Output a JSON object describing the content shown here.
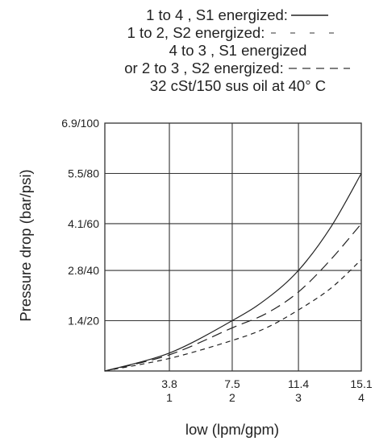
{
  "legend": [
    {
      "text": "1 to 4 , S1 energized:",
      "style": "solid"
    },
    {
      "text": "1 to 2, S2 energized:",
      "style": "sparse-dash"
    },
    {
      "text": "4 to 3 , S1 energized",
      "style": "none"
    },
    {
      "text": "or 2 to 3 , S2 energized:",
      "style": "dash"
    },
    {
      "text": "32 cSt/150 sus oil at 40°  C",
      "style": "none"
    }
  ],
  "chart_data": {
    "type": "line",
    "xlabel": "low (lpm/gpm)",
    "ylabel": "Pressure drop (bar/psi)",
    "x_ticks": [
      {
        "value": 3.8,
        "top": "3.8",
        "bottom": "1"
      },
      {
        "value": 7.5,
        "top": "7.5",
        "bottom": "2"
      },
      {
        "value": 11.4,
        "top": "11.4",
        "bottom": "3"
      },
      {
        "value": 15.1,
        "top": "15.1",
        "bottom": "4"
      }
    ],
    "y_ticks": [
      {
        "value": 1.4,
        "label": "1.4/20"
      },
      {
        "value": 2.8,
        "label": "2.8/40"
      },
      {
        "value": 4.1,
        "label": "4.1/60"
      },
      {
        "value": 5.5,
        "label": "5.5/80"
      },
      {
        "value": 6.9,
        "label": "6.9/100"
      }
    ],
    "xlim": [
      0,
      15.1
    ],
    "ylim": [
      0,
      6.9
    ],
    "grid": true,
    "series": [
      {
        "style": "solid",
        "x": [
          0,
          3.8,
          7.5,
          9.5,
          11.4,
          13.3,
          15.1
        ],
        "y": [
          0,
          0.5,
          1.4,
          2.0,
          2.8,
          4.0,
          5.5
        ]
      },
      {
        "style": "long-dash",
        "x": [
          0,
          3.8,
          7.5,
          9.5,
          11.4,
          13.3,
          15.1
        ],
        "y": [
          0,
          0.45,
          1.2,
          1.6,
          2.2,
          3.1,
          4.1
        ]
      },
      {
        "style": "short-dash",
        "x": [
          0,
          3.8,
          7.5,
          9.5,
          11.4,
          13.3,
          15.1
        ],
        "y": [
          0,
          0.35,
          0.85,
          1.2,
          1.7,
          2.3,
          3.1
        ]
      }
    ]
  }
}
